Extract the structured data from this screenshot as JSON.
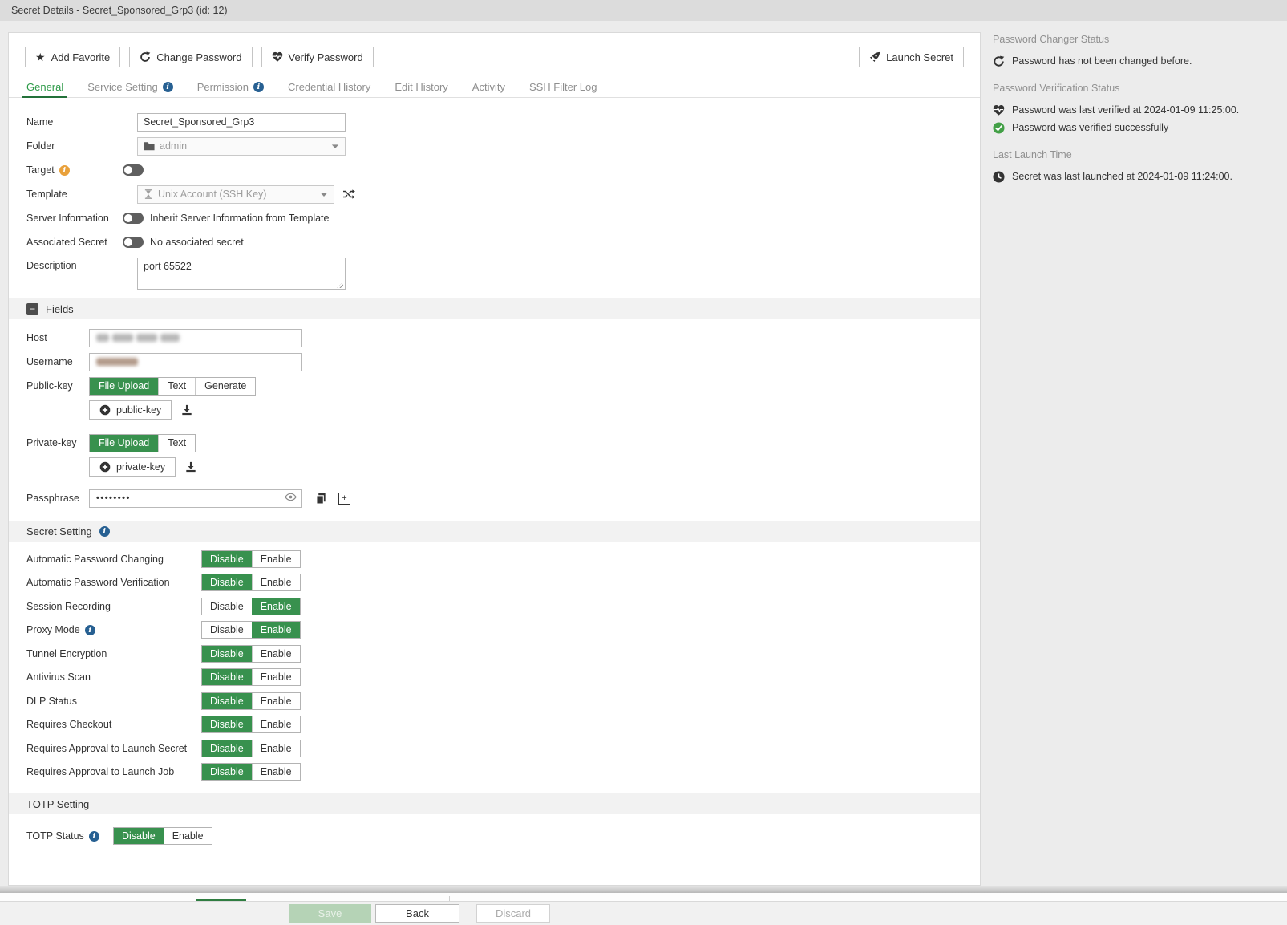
{
  "window": {
    "title": "Secret Details - Secret_Sponsored_Grp3 (id: 12)"
  },
  "toolbar": {
    "add_favorite": "Add Favorite",
    "change_password": "Change Password",
    "verify_password": "Verify Password",
    "launch_secret": "Launch Secret"
  },
  "tabs": [
    {
      "label": "General",
      "active": true,
      "info": false
    },
    {
      "label": "Service Setting",
      "active": false,
      "info": true
    },
    {
      "label": "Permission",
      "active": false,
      "info": true
    },
    {
      "label": "Credential History",
      "active": false,
      "info": false
    },
    {
      "label": "Edit History",
      "active": false,
      "info": false
    },
    {
      "label": "Activity",
      "active": false,
      "info": false
    },
    {
      "label": "SSH Filter Log",
      "active": false,
      "info": false
    }
  ],
  "general_form": {
    "name": {
      "label": "Name",
      "value": "Secret_Sponsored_Grp3"
    },
    "folder": {
      "label": "Folder",
      "value": "admin",
      "disabled": true
    },
    "target": {
      "label": "Target",
      "toggle": "off"
    },
    "template": {
      "label": "Template",
      "value": "Unix Account (SSH Key)",
      "disabled": true
    },
    "server_information": {
      "label": "Server Information",
      "toggle": "off",
      "note": "Inherit Server Information from Template"
    },
    "associated_secret": {
      "label": "Associated Secret",
      "toggle": "off",
      "note": "No associated secret"
    },
    "description": {
      "label": "Description",
      "value": "port 65522"
    }
  },
  "fields_section": {
    "title": "Fields",
    "host": {
      "label": "Host",
      "redacted": true
    },
    "username": {
      "label": "Username",
      "redacted": true
    },
    "public_key": {
      "label": "Public-key",
      "options": [
        "File Upload",
        "Text",
        "Generate"
      ],
      "active": "File Upload",
      "upload_button": "public-key"
    },
    "private_key": {
      "label": "Private-key",
      "options": [
        "File Upload",
        "Text"
      ],
      "active": "File Upload",
      "upload_button": "private-key"
    },
    "passphrase": {
      "label": "Passphrase",
      "masked_value": "••••••••"
    }
  },
  "secret_setting": {
    "title": "Secret Setting",
    "disable_label": "Disable",
    "enable_label": "Enable",
    "rows": [
      {
        "label": "Automatic Password Changing",
        "info": false,
        "state": "disable"
      },
      {
        "label": "Automatic Password Verification",
        "info": false,
        "state": "disable"
      },
      {
        "label": "Session Recording",
        "info": false,
        "state": "enable"
      },
      {
        "label": "Proxy Mode",
        "info": true,
        "state": "enable"
      },
      {
        "label": "Tunnel Encryption",
        "info": false,
        "state": "disable"
      },
      {
        "label": "Antivirus Scan",
        "info": false,
        "state": "disable"
      },
      {
        "label": "DLP Status",
        "info": false,
        "state": "disable"
      },
      {
        "label": "Requires Checkout",
        "info": false,
        "state": "disable"
      },
      {
        "label": "Requires Approval to Launch Secret",
        "info": false,
        "state": "disable"
      },
      {
        "label": "Requires Approval to Launch Job",
        "info": false,
        "state": "disable"
      }
    ]
  },
  "totp": {
    "title": "TOTP Setting",
    "status_label": "TOTP Status",
    "state": "disable"
  },
  "status_panel": {
    "changer": {
      "title": "Password Changer Status",
      "message": "Password has not been changed before."
    },
    "verification": {
      "title": "Password Verification Status",
      "verified_at": "Password was last verified at 2024-01-09 11:25:00.",
      "verified_result": "Password was verified successfully"
    },
    "last_launch": {
      "title": "Last Launch Time",
      "message": "Secret was last launched at 2024-01-09 11:24:00."
    }
  },
  "footer": {
    "save": "Save",
    "back": "Back",
    "discard": "Discard"
  },
  "colors": {
    "accent_green": "#38914e",
    "tab_green": "#2c9a47",
    "info_blue": "#276092",
    "warning_orange": "#e9a13b",
    "success_green": "#43a047"
  }
}
